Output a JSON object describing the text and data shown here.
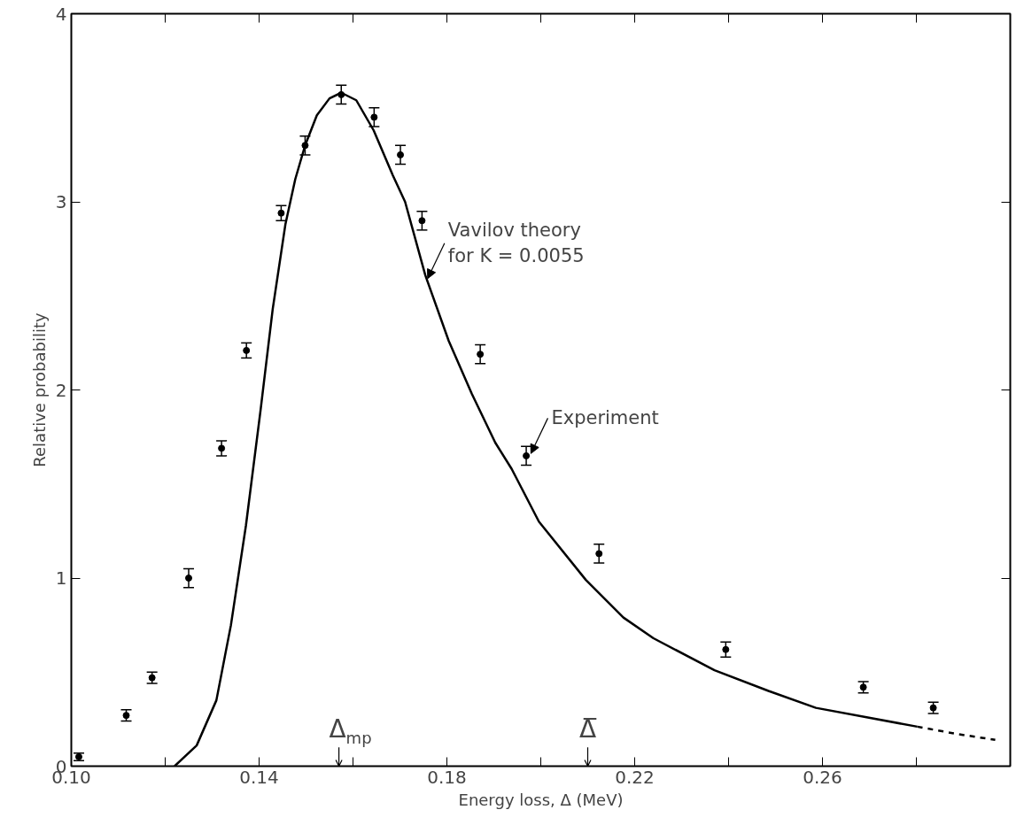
{
  "chart_data": {
    "type": "scatter",
    "xlabel": "Energy loss, Δ (MeV)",
    "ylabel": "Relative probability",
    "xlim": [
      0.1,
      0.3
    ],
    "ylim": [
      0,
      4
    ],
    "xticks": [
      {
        "value": 0.1,
        "label": "0.10"
      },
      {
        "value": 0.12,
        "label": null
      },
      {
        "value": 0.14,
        "label": "0.14"
      },
      {
        "value": 0.16,
        "label": null
      },
      {
        "value": 0.18,
        "label": "0.18"
      },
      {
        "value": 0.2,
        "label": null
      },
      {
        "value": 0.22,
        "label": "0.22"
      },
      {
        "value": 0.24,
        "label": null
      },
      {
        "value": 0.26,
        "label": "0.26"
      },
      {
        "value": 0.28,
        "label": null
      }
    ],
    "yticks": [
      0,
      1,
      2,
      3,
      4
    ],
    "grid": false,
    "marker": "circle",
    "series": [
      {
        "color": "#000000",
        "x": [
          0.1016,
          0.1117,
          0.1172,
          0.125,
          0.132,
          0.1373,
          0.1447,
          0.1498,
          0.1575,
          0.1645,
          0.1701,
          0.1747,
          0.1871,
          0.1969,
          0.2124,
          0.2394,
          0.2687,
          0.2836
        ],
        "values": [
          0.05,
          0.27,
          0.47,
          1.0,
          1.69,
          2.21,
          2.94,
          3.3,
          3.57,
          3.45,
          3.25,
          2.9,
          2.19,
          1.65,
          1.13,
          0.62,
          0.42,
          0.31
        ],
        "errors": [
          0.02,
          0.03,
          0.03,
          0.05,
          0.04,
          0.04,
          0.04,
          0.05,
          0.05,
          0.05,
          0.05,
          0.05,
          0.05,
          0.05,
          0.05,
          0.04,
          0.03,
          0.03
        ]
      },
      {
        "type": "line",
        "color": "#000000",
        "line_style": "solid",
        "marker": "none",
        "x": [
          0.122,
          0.1267,
          0.1309,
          0.134,
          0.1372,
          0.1403,
          0.1429,
          0.1456,
          0.1477,
          0.1498,
          0.1523,
          0.155,
          0.1575,
          0.1607,
          0.1644,
          0.1685,
          0.1711,
          0.1754,
          0.1804,
          0.1853,
          0.1903,
          0.1938,
          0.1996,
          0.2096,
          0.2176,
          0.224,
          0.237,
          0.2485,
          0.2586,
          0.2694,
          0.2802
        ],
        "values": [
          0.0,
          0.11,
          0.35,
          0.75,
          1.28,
          1.89,
          2.43,
          2.88,
          3.12,
          3.3,
          3.46,
          3.55,
          3.58,
          3.54,
          3.38,
          3.14,
          3.0,
          2.61,
          2.26,
          1.98,
          1.72,
          1.58,
          1.3,
          0.99,
          0.79,
          0.68,
          0.51,
          0.4,
          0.31,
          0.26,
          0.21
        ]
      },
      {
        "type": "line",
        "color": "#000000",
        "line_style": "dashed",
        "marker": "none",
        "x": [
          0.2802,
          0.2889,
          0.2968
        ],
        "values": [
          0.21,
          0.17,
          0.14
        ]
      }
    ],
    "annotations": [
      {
        "text": "Vavilov theory\nfor K = 0.0055",
        "x": 0.1755,
        "y": 2.58
      },
      {
        "text": "Experiment",
        "x": 0.1975,
        "y": 1.65
      }
    ],
    "ref_lines": [
      {
        "axis": "x",
        "value": 0.157,
        "label": "Δ$_{mp}$"
      },
      {
        "axis": "x",
        "value": 0.21,
        "label": "Δ̅"
      }
    ]
  }
}
